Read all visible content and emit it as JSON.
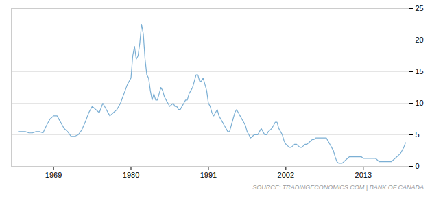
{
  "chart_data": {
    "type": "line",
    "caption": "SOURCE: TRADINGECONOMICS.COM | BANK OF CANADA",
    "color": "#7bafd4",
    "grid": true,
    "xlim": [
      1963,
      2019.5
    ],
    "xticks": [
      1969,
      1980,
      1991,
      2002,
      2013
    ],
    "ylim": [
      0,
      25
    ],
    "yticks": [
      0,
      5,
      10,
      15,
      20,
      25
    ],
    "x": [
      1964.0,
      1964.5,
      1965.0,
      1965.5,
      1966.0,
      1966.5,
      1967.0,
      1967.5,
      1968.0,
      1968.5,
      1969.0,
      1969.5,
      1970.0,
      1970.5,
      1971.0,
      1971.5,
      1972.0,
      1972.5,
      1973.0,
      1973.5,
      1974.0,
      1974.5,
      1975.0,
      1975.5,
      1976.0,
      1976.5,
      1977.0,
      1977.5,
      1978.0,
      1978.5,
      1979.0,
      1979.5,
      1980.0,
      1980.25,
      1980.5,
      1980.75,
      1981.0,
      1981.25,
      1981.5,
      1981.75,
      1982.0,
      1982.25,
      1982.5,
      1982.75,
      1983.0,
      1983.25,
      1983.5,
      1983.75,
      1984.0,
      1984.25,
      1984.5,
      1984.75,
      1985.0,
      1985.25,
      1985.5,
      1985.75,
      1986.0,
      1986.25,
      1986.5,
      1986.75,
      1987.0,
      1987.25,
      1987.5,
      1987.75,
      1988.0,
      1988.25,
      1988.5,
      1988.75,
      1989.0,
      1989.25,
      1989.5,
      1989.75,
      1990.0,
      1990.25,
      1990.5,
      1990.75,
      1991.0,
      1991.25,
      1991.5,
      1991.75,
      1992.0,
      1992.25,
      1992.5,
      1992.75,
      1993.0,
      1993.25,
      1993.5,
      1993.75,
      1994.0,
      1994.25,
      1994.5,
      1994.75,
      1995.0,
      1995.25,
      1995.5,
      1995.75,
      1996.0,
      1996.25,
      1996.5,
      1996.75,
      1997.0,
      1997.25,
      1997.5,
      1997.75,
      1998.0,
      1998.25,
      1998.5,
      1998.75,
      1999.0,
      1999.25,
      1999.5,
      1999.75,
      2000.0,
      2000.25,
      2000.5,
      2000.75,
      2001.0,
      2001.25,
      2001.5,
      2001.75,
      2002.0,
      2002.25,
      2002.5,
      2002.75,
      2003.0,
      2003.25,
      2003.5,
      2003.75,
      2004.0,
      2004.25,
      2004.5,
      2004.75,
      2005.0,
      2005.25,
      2005.5,
      2005.75,
      2006.0,
      2006.25,
      2006.5,
      2006.75,
      2007.0,
      2007.25,
      2007.5,
      2007.75,
      2008.0,
      2008.25,
      2008.5,
      2008.75,
      2009.0,
      2009.25,
      2009.5,
      2009.75,
      2010.0,
      2010.25,
      2010.5,
      2010.75,
      2011.0,
      2011.25,
      2011.5,
      2011.75,
      2012.0,
      2012.25,
      2012.5,
      2012.75,
      2013.0,
      2013.25,
      2013.5,
      2013.75,
      2014.0,
      2014.25,
      2014.5,
      2014.75,
      2015.0,
      2015.25,
      2015.5,
      2015.75,
      2016.0,
      2016.25,
      2016.5,
      2016.75,
      2017.0,
      2017.25,
      2017.5,
      2017.75,
      2018.0,
      2018.25,
      2018.5,
      2018.75,
      2019.0
    ],
    "values": [
      5.5,
      5.5,
      5.5,
      5.3,
      5.3,
      5.5,
      5.5,
      5.3,
      6.5,
      7.5,
      8.0,
      8.0,
      7.0,
      6.0,
      5.5,
      4.75,
      4.75,
      5.0,
      5.75,
      7.0,
      8.5,
      9.5,
      9.0,
      8.5,
      10.0,
      9.0,
      8.0,
      8.5,
      9.0,
      10.0,
      11.5,
      13.0,
      14.0,
      17.5,
      19.0,
      17.0,
      17.5,
      19.5,
      22.5,
      21.0,
      17.0,
      14.5,
      14.0,
      12.0,
      10.5,
      11.5,
      10.5,
      10.5,
      11.5,
      12.5,
      12.0,
      11.0,
      10.5,
      10.0,
      9.5,
      9.75,
      10.0,
      9.5,
      9.5,
      9.0,
      9.0,
      9.5,
      10.0,
      10.5,
      10.5,
      11.5,
      12.0,
      12.5,
      13.5,
      14.5,
      14.5,
      13.5,
      13.5,
      14.0,
      13.0,
      12.0,
      10.0,
      9.5,
      8.5,
      8.0,
      8.5,
      9.0,
      8.0,
      7.5,
      7.0,
      6.5,
      6.0,
      5.5,
      5.5,
      6.5,
      7.5,
      8.5,
      9.0,
      8.5,
      8.0,
      7.5,
      7.0,
      6.5,
      5.5,
      5.0,
      4.5,
      4.75,
      5.0,
      5.0,
      5.0,
      5.5,
      6.0,
      5.5,
      5.0,
      5.0,
      5.5,
      5.75,
      6.0,
      6.5,
      7.0,
      7.0,
      6.0,
      5.5,
      5.0,
      4.0,
      3.5,
      3.25,
      3.0,
      3.0,
      3.25,
      3.5,
      3.5,
      3.25,
      3.0,
      3.0,
      3.25,
      3.5,
      3.5,
      3.75,
      4.0,
      4.25,
      4.25,
      4.5,
      4.5,
      4.5,
      4.5,
      4.5,
      4.5,
      4.5,
      4.0,
      3.5,
      3.0,
      2.5,
      1.5,
      0.75,
      0.5,
      0.5,
      0.5,
      0.75,
      1.0,
      1.25,
      1.5,
      1.5,
      1.5,
      1.5,
      1.5,
      1.5,
      1.5,
      1.5,
      1.25,
      1.25,
      1.25,
      1.25,
      1.25,
      1.25,
      1.25,
      1.25,
      1.0,
      0.75,
      0.75,
      0.75,
      0.75,
      0.75,
      0.75,
      0.75,
      0.75,
      1.0,
      1.25,
      1.5,
      1.75,
      2.0,
      2.5,
      3.0,
      3.75
    ]
  }
}
